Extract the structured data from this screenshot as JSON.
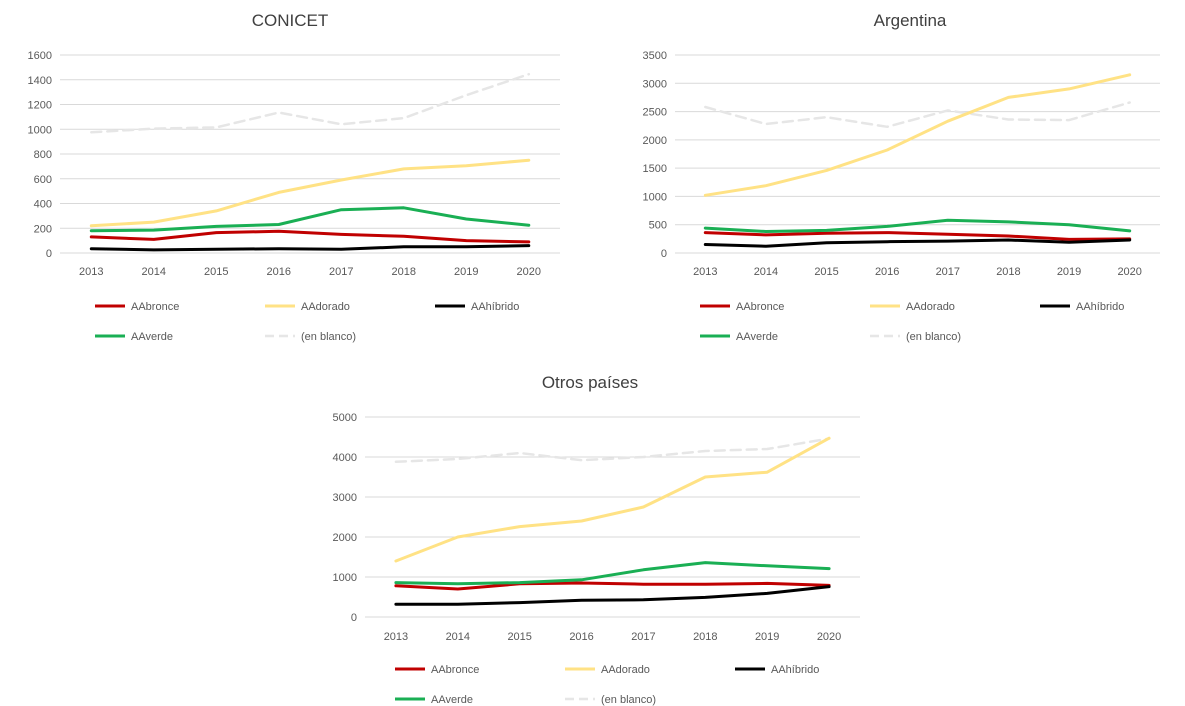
{
  "chart_data": [
    {
      "type": "line",
      "title": "CONICET",
      "x": [
        "2013",
        "2014",
        "2015",
        "2016",
        "2017",
        "2018",
        "2019",
        "2020"
      ],
      "ylim": [
        0,
        1600
      ],
      "yticks": [
        0,
        200,
        400,
        600,
        800,
        1000,
        1200,
        1400,
        1600
      ],
      "grid": true,
      "legend_position": "bottom",
      "series": [
        {
          "name": "AAbronce",
          "color": "#c00000",
          "values": [
            130,
            110,
            165,
            175,
            150,
            135,
            100,
            90
          ]
        },
        {
          "name": "AAdorado",
          "color": "#ffe285",
          "values": [
            220,
            250,
            340,
            490,
            590,
            680,
            705,
            750
          ]
        },
        {
          "name": "AAhíbrido",
          "color": "#000000",
          "values": [
            35,
            25,
            30,
            35,
            30,
            50,
            50,
            60
          ]
        },
        {
          "name": "AAverde",
          "color": "#1aaf54",
          "values": [
            180,
            185,
            215,
            230,
            350,
            365,
            275,
            225
          ]
        },
        {
          "name": "(en blanco)",
          "color": "#e6e6e6",
          "dashed": true,
          "values": [
            975,
            1005,
            1015,
            1135,
            1040,
            1090,
            1275,
            1445
          ]
        }
      ]
    },
    {
      "type": "line",
      "title": "Argentina",
      "x": [
        "2013",
        "2014",
        "2015",
        "2016",
        "2017",
        "2018",
        "2019",
        "2020"
      ],
      "ylim": [
        0,
        3500
      ],
      "yticks": [
        0,
        500,
        1000,
        1500,
        2000,
        2500,
        3000,
        3500
      ],
      "grid": true,
      "legend_position": "bottom",
      "series": [
        {
          "name": "AAbronce",
          "color": "#c00000",
          "values": [
            360,
            320,
            350,
            360,
            330,
            300,
            240,
            250
          ]
        },
        {
          "name": "AAdorado",
          "color": "#ffe285",
          "values": [
            1020,
            1190,
            1460,
            1820,
            2330,
            2750,
            2900,
            3150
          ]
        },
        {
          "name": "AAhíbrido",
          "color": "#000000",
          "values": [
            150,
            120,
            180,
            200,
            210,
            230,
            190,
            230
          ]
        },
        {
          "name": "AAverde",
          "color": "#1aaf54",
          "values": [
            440,
            380,
            400,
            470,
            580,
            550,
            500,
            390
          ]
        },
        {
          "name": "(en blanco)",
          "color": "#e6e6e6",
          "dashed": true,
          "values": [
            2580,
            2280,
            2400,
            2230,
            2520,
            2360,
            2350,
            2660
          ]
        }
      ]
    },
    {
      "type": "line",
      "title": "Otros países",
      "x": [
        "2013",
        "2014",
        "2015",
        "2016",
        "2017",
        "2018",
        "2019",
        "2020"
      ],
      "ylim": [
        0,
        5000
      ],
      "yticks": [
        0,
        1000,
        2000,
        3000,
        4000,
        5000
      ],
      "grid": true,
      "legend_position": "bottom",
      "series": [
        {
          "name": "AAbronce",
          "color": "#c00000",
          "values": [
            780,
            700,
            830,
            850,
            820,
            820,
            840,
            790
          ]
        },
        {
          "name": "AAdorado",
          "color": "#ffe285",
          "values": [
            1400,
            2000,
            2260,
            2400,
            2750,
            3500,
            3620,
            4470
          ]
        },
        {
          "name": "AAhíbrido",
          "color": "#000000",
          "values": [
            320,
            320,
            360,
            420,
            430,
            490,
            590,
            760
          ]
        },
        {
          "name": "AAverde",
          "color": "#1aaf54",
          "values": [
            860,
            830,
            860,
            930,
            1180,
            1360,
            1280,
            1210
          ]
        },
        {
          "name": "(en blanco)",
          "color": "#e6e6e6",
          "dashed": true,
          "values": [
            3880,
            3950,
            4100,
            3920,
            4000,
            4150,
            4200,
            4460
          ]
        }
      ]
    }
  ]
}
